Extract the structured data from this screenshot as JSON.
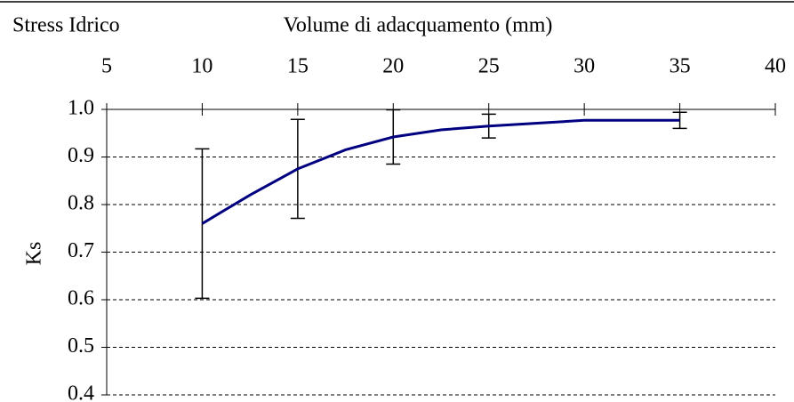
{
  "chart_data": {
    "type": "line",
    "title": "Stress Idrico",
    "x_label": "Volume di adacquamento (mm)",
    "y_label": "Ks",
    "x": [
      10,
      12.5,
      15,
      17.5,
      20,
      22.5,
      25,
      30,
      35
    ],
    "series": [
      {
        "name": "Ks",
        "color": "#000080",
        "values": [
          0.76,
          0.82,
          0.875,
          0.915,
          0.942,
          0.957,
          0.965,
          0.977,
          0.977
        ],
        "errors": [
          0.157,
          null,
          0.104,
          null,
          0.057,
          null,
          0.025,
          null,
          0.017
        ]
      }
    ],
    "xlim": [
      5,
      40
    ],
    "xticks": [
      5,
      10,
      15,
      20,
      25,
      30,
      35,
      40
    ],
    "ylim": [
      0.4,
      1
    ],
    "yticks": [
      0.4,
      0.5,
      0.6,
      0.7,
      0.8,
      0.9,
      {
        "value": 1,
        "label": "1.0"
      }
    ],
    "grid": true
  }
}
